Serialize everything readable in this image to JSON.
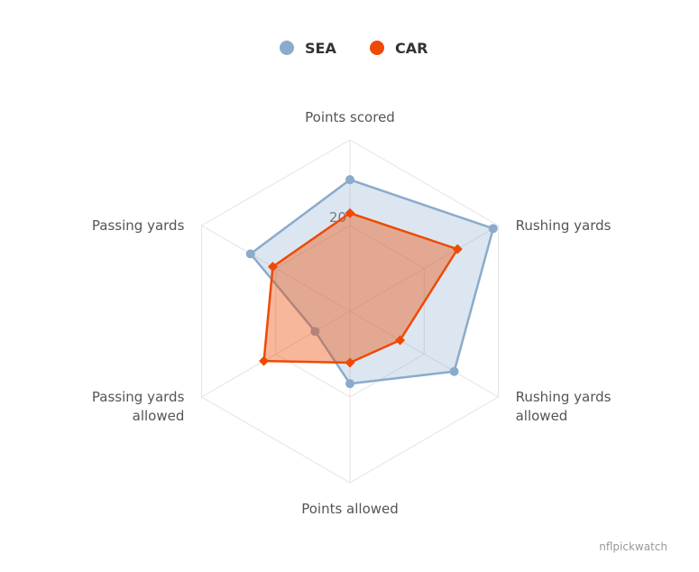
{
  "chart_data": {
    "type": "radar",
    "axes": [
      "Points scored",
      "Rushing yards",
      "Rushing yards allowed",
      "Points allowed",
      "Passing yards allowed",
      "Passing yards"
    ],
    "axis_label_lines": [
      [
        "Points scored"
      ],
      [
        "Rushing yards"
      ],
      [
        "Rushing yards",
        "allowed"
      ],
      [
        "Points allowed"
      ],
      [
        "Passing yards",
        "allowed"
      ],
      [
        "Passing yards"
      ]
    ],
    "rlim": [
      0,
      40
    ],
    "radial_ticks": [
      20
    ],
    "grid": true,
    "legend_position": "top-center",
    "series": [
      {
        "name": "SEA",
        "color": "#8aabcc",
        "marker": "circle",
        "values": [
          30.7,
          38.6,
          28.1,
          16.9,
          9.4,
          26.8
        ]
      },
      {
        "name": "CAR",
        "color": "#ee4a05",
        "marker": "diamond",
        "values": [
          22.9,
          29.0,
          13.5,
          12.0,
          23.2,
          20.8
        ]
      }
    ]
  },
  "credit": "nflpickwatch"
}
